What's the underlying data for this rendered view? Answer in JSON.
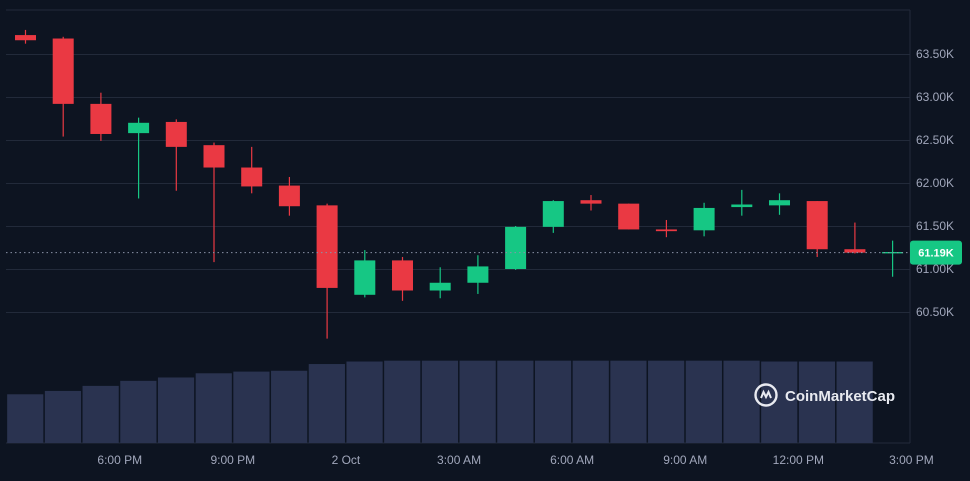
{
  "chart_data": {
    "type": "candlestick",
    "y_ticks": [
      "63.50K",
      "63.00K",
      "62.50K",
      "62.00K",
      "61.50K",
      "61.00K",
      "60.50K"
    ],
    "y_tick_values": [
      63500,
      63000,
      62500,
      62000,
      61500,
      61000,
      60500
    ],
    "x_ticks": [
      "6:00 PM",
      "9:00 PM",
      "2 Oct",
      "3:00 AM",
      "6:00 AM",
      "9:00 AM",
      "12:00 PM",
      "3:00 PM"
    ],
    "x_tick_index": [
      2.5,
      5.5,
      8.5,
      11.5,
      14.5,
      17.5,
      20.5,
      23.5
    ],
    "current_price_label": "61.19K",
    "current_price": 61190,
    "colors": {
      "up": "#16c784",
      "down": "#ea3943",
      "volume": "#2a3350",
      "grid": "#222a3a",
      "background": "#0d1421"
    },
    "candles": [
      {
        "o": 63720,
        "h": 63780,
        "l": 63620,
        "c": 63660
      },
      {
        "o": 63680,
        "h": 63700,
        "l": 62540,
        "c": 62920
      },
      {
        "o": 62920,
        "h": 63050,
        "l": 62490,
        "c": 62570
      },
      {
        "o": 62580,
        "h": 62760,
        "l": 61820,
        "c": 62700
      },
      {
        "o": 62710,
        "h": 62740,
        "l": 61910,
        "c": 62420
      },
      {
        "o": 62440,
        "h": 62470,
        "l": 61080,
        "c": 62180
      },
      {
        "o": 62180,
        "h": 62420,
        "l": 61880,
        "c": 61960
      },
      {
        "o": 61970,
        "h": 62070,
        "l": 61620,
        "c": 61730
      },
      {
        "o": 61740,
        "h": 61760,
        "l": 60190,
        "c": 60780
      },
      {
        "o": 60700,
        "h": 61220,
        "l": 60670,
        "c": 61100
      },
      {
        "o": 61100,
        "h": 61140,
        "l": 60630,
        "c": 60750
      },
      {
        "o": 60750,
        "h": 61020,
        "l": 60660,
        "c": 60840
      },
      {
        "o": 60840,
        "h": 61160,
        "l": 60710,
        "c": 61030
      },
      {
        "o": 61000,
        "h": 61500,
        "l": 60990,
        "c": 61490
      },
      {
        "o": 61490,
        "h": 61800,
        "l": 61420,
        "c": 61790
      },
      {
        "o": 61800,
        "h": 61860,
        "l": 61680,
        "c": 61760
      },
      {
        "o": 61760,
        "h": 61760,
        "l": 61460,
        "c": 61460
      },
      {
        "o": 61460,
        "h": 61570,
        "l": 61370,
        "c": 61440
      },
      {
        "o": 61450,
        "h": 61770,
        "l": 61380,
        "c": 61710
      },
      {
        "o": 61720,
        "h": 61920,
        "l": 61620,
        "c": 61750
      },
      {
        "o": 61740,
        "h": 61880,
        "l": 61630,
        "c": 61800
      },
      {
        "o": 61790,
        "h": 61790,
        "l": 61140,
        "c": 61230
      },
      {
        "o": 61230,
        "h": 61540,
        "l": 61180,
        "c": 61190
      },
      {
        "o": 61190,
        "h": 61330,
        "l": 60910,
        "c": 61190
      }
    ],
    "volume": [
      0.58,
      0.62,
      0.68,
      0.74,
      0.78,
      0.83,
      0.85,
      0.86,
      0.94,
      0.97,
      0.98,
      0.98,
      0.98,
      0.98,
      0.98,
      0.98,
      0.98,
      0.98,
      0.98,
      0.98,
      0.97,
      0.97,
      0.97,
      0
    ]
  },
  "watermark": {
    "text": "CoinMarketCap",
    "icon": "coinmarketcap-logo-icon"
  }
}
